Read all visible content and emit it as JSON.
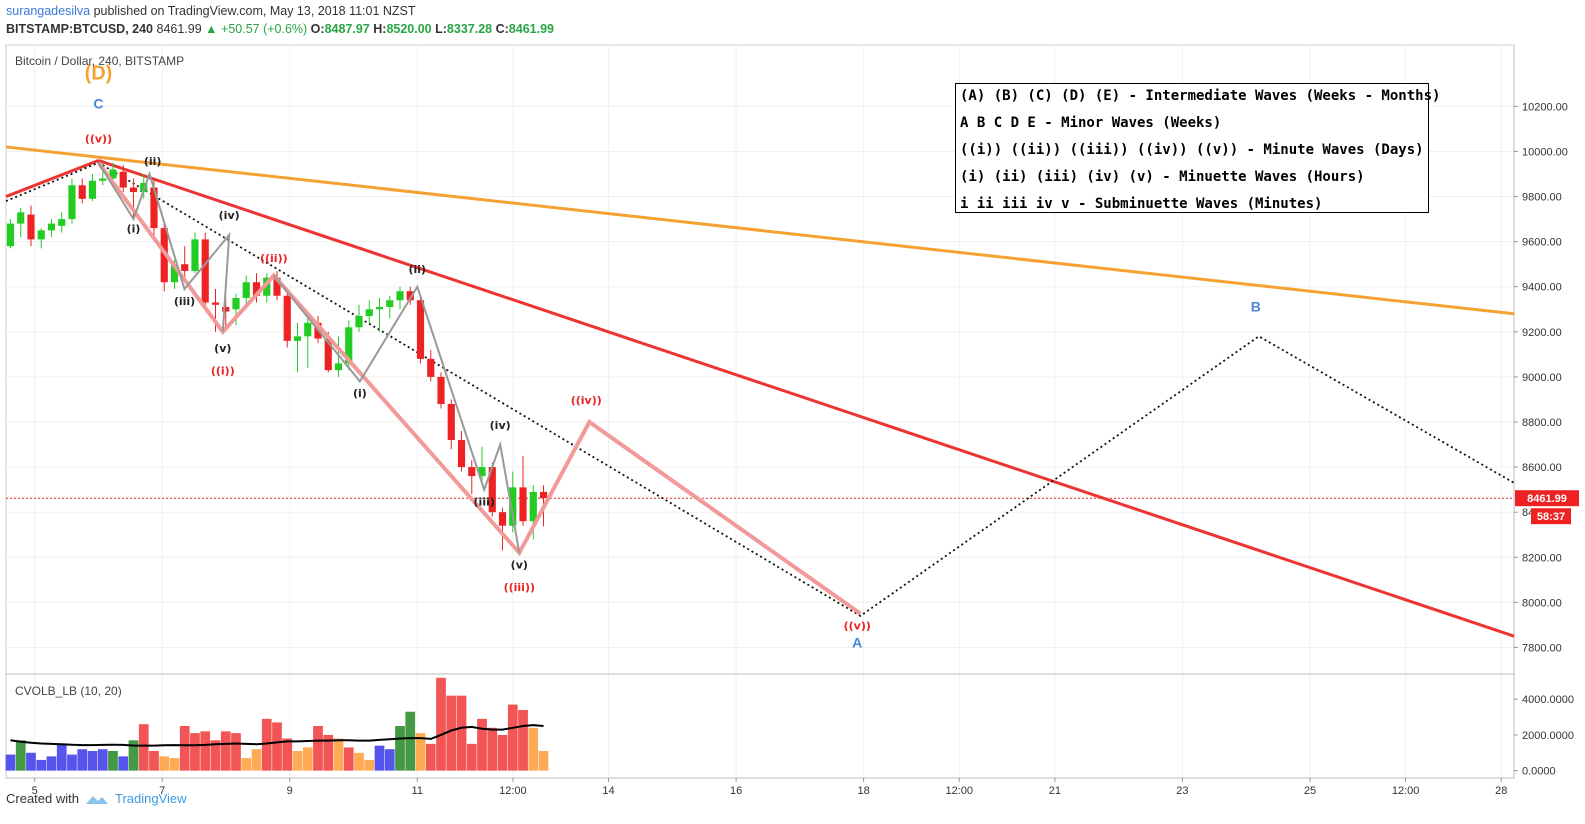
{
  "header": {
    "author": "surangadesilva",
    "published": "published on TradingView.com, May 13, 2018 11:01 NZST",
    "symbol": "BITSTAMP:BTCUSD, 240",
    "last": "8461.99",
    "change": "▲ +50.57 (+0.6%)",
    "o_label": "O:",
    "o": "8487.97",
    "h_label": "H:",
    "h": "8520.00",
    "l_label": "L:",
    "l": "8337.28",
    "c_label": "C:",
    "c": "8461.99"
  },
  "pane_title": "Bitcoin / Dollar, 240, BITSTAMP",
  "indicator_title": "CVOLB_LB (10, 20)",
  "legend": [
    "(A) (B) (C) (D) (E) - Intermediate Waves (Weeks - Months)",
    "A B C D E - Minor Waves (Weeks)",
    "((i)) ((ii)) ((iii)) ((iv)) ((v)) - Minute Waves (Days)",
    "(i) (ii) (iii) (iv) (v) - Minuette Waves (Hours)",
    "i ii iii iv v - Subminuette Waves (Minutes)"
  ],
  "price_tag": "8461.99",
  "countdown_tag": "58:37",
  "footer": {
    "created_with": "Created with",
    "brand": "TradingView"
  },
  "colors": {
    "up": "#22cc22",
    "down": "#ee2222",
    "orange_line": "#f5a233",
    "red_line": "#ee3333",
    "wave_pink": "#f29999",
    "wave_gray": "#999999",
    "blue_label": "#4a86d8",
    "red_label": "#ee2222",
    "vol_blue": "#5555ee",
    "vol_green": "#449944",
    "vol_orange": "#ffaa55",
    "vol_red": "#f25555"
  },
  "chart_data": {
    "type": "candlestick",
    "title": "Bitcoin / Dollar, 240, BITSTAMP",
    "y_range": [
      7700,
      10450
    ],
    "y_ticks": [
      7800,
      8000,
      8200,
      8400,
      8600,
      8800,
      9000,
      9200,
      9400,
      9600,
      9800,
      10000,
      10200
    ],
    "x_ticks": [
      {
        "t": 5,
        "label": "5"
      },
      {
        "t": 7,
        "label": "7"
      },
      {
        "t": 9,
        "label": "9"
      },
      {
        "t": 11,
        "label": "11"
      },
      {
        "t": 12.5,
        "label": "12:00"
      },
      {
        "t": 14,
        "label": "14"
      },
      {
        "t": 16,
        "label": "16"
      },
      {
        "t": 18,
        "label": "18"
      },
      {
        "t": 19.5,
        "label": "12:00"
      },
      {
        "t": 21,
        "label": "21"
      },
      {
        "t": 23,
        "label": "23"
      },
      {
        "t": 25,
        "label": "25"
      },
      {
        "t": 26.5,
        "label": "12:00"
      },
      {
        "t": 28,
        "label": "28"
      }
    ],
    "x_range": [
      4.55,
      28.2
    ],
    "last_price": 8461.99,
    "candles": [
      {
        "o": 9580,
        "h": 9700,
        "l": 9570,
        "c": 9680
      },
      {
        "o": 9680,
        "h": 9750,
        "l": 9620,
        "c": 9730
      },
      {
        "o": 9720,
        "h": 9760,
        "l": 9580,
        "c": 9610
      },
      {
        "o": 9610,
        "h": 9660,
        "l": 9570,
        "c": 9650
      },
      {
        "o": 9650,
        "h": 9700,
        "l": 9620,
        "c": 9680
      },
      {
        "o": 9670,
        "h": 9730,
        "l": 9640,
        "c": 9700
      },
      {
        "o": 9700,
        "h": 9880,
        "l": 9680,
        "c": 9850
      },
      {
        "o": 9850,
        "h": 9880,
        "l": 9770,
        "c": 9790
      },
      {
        "o": 9790,
        "h": 9900,
        "l": 9780,
        "c": 9870
      },
      {
        "o": 9870,
        "h": 9950,
        "l": 9850,
        "c": 9880
      },
      {
        "o": 9880,
        "h": 9950,
        "l": 9850,
        "c": 9920
      },
      {
        "o": 9910,
        "h": 9940,
        "l": 9820,
        "c": 9840
      },
      {
        "o": 9840,
        "h": 9880,
        "l": 9700,
        "c": 9820
      },
      {
        "o": 9820,
        "h": 9900,
        "l": 9790,
        "c": 9860
      },
      {
        "o": 9840,
        "h": 9870,
        "l": 9600,
        "c": 9660
      },
      {
        "o": 9660,
        "h": 9680,
        "l": 9380,
        "c": 9420
      },
      {
        "o": 9420,
        "h": 9520,
        "l": 9390,
        "c": 9500
      },
      {
        "o": 9500,
        "h": 9580,
        "l": 9440,
        "c": 9470
      },
      {
        "o": 9470,
        "h": 9640,
        "l": 9460,
        "c": 9610
      },
      {
        "o": 9610,
        "h": 9640,
        "l": 9300,
        "c": 9330
      },
      {
        "o": 9330,
        "h": 9390,
        "l": 9200,
        "c": 9320
      },
      {
        "o": 9310,
        "h": 9350,
        "l": 9220,
        "c": 9290
      },
      {
        "o": 9300,
        "h": 9370,
        "l": 9230,
        "c": 9350
      },
      {
        "o": 9350,
        "h": 9450,
        "l": 9300,
        "c": 9420
      },
      {
        "o": 9420,
        "h": 9460,
        "l": 9330,
        "c": 9360
      },
      {
        "o": 9360,
        "h": 9460,
        "l": 9330,
        "c": 9440
      },
      {
        "o": 9440,
        "h": 9470,
        "l": 9340,
        "c": 9360
      },
      {
        "o": 9360,
        "h": 9380,
        "l": 9130,
        "c": 9160
      },
      {
        "o": 9160,
        "h": 9240,
        "l": 9020,
        "c": 9180
      },
      {
        "o": 9180,
        "h": 9260,
        "l": 9040,
        "c": 9240
      },
      {
        "o": 9240,
        "h": 9270,
        "l": 9150,
        "c": 9170
      },
      {
        "o": 9170,
        "h": 9200,
        "l": 9020,
        "c": 9030
      },
      {
        "o": 9030,
        "h": 9180,
        "l": 9000,
        "c": 9060
      },
      {
        "o": 9060,
        "h": 9250,
        "l": 9030,
        "c": 9220
      },
      {
        "o": 9220,
        "h": 9320,
        "l": 9200,
        "c": 9270
      },
      {
        "o": 9270,
        "h": 9340,
        "l": 9240,
        "c": 9300
      },
      {
        "o": 9300,
        "h": 9350,
        "l": 9200,
        "c": 9310
      },
      {
        "o": 9310,
        "h": 9360,
        "l": 9260,
        "c": 9340
      },
      {
        "o": 9340,
        "h": 9400,
        "l": 9300,
        "c": 9380
      },
      {
        "o": 9380,
        "h": 9400,
        "l": 9320,
        "c": 9340
      },
      {
        "o": 9340,
        "h": 9360,
        "l": 9060,
        "c": 9080
      },
      {
        "o": 9080,
        "h": 9120,
        "l": 8980,
        "c": 9000
      },
      {
        "o": 9000,
        "h": 9020,
        "l": 8860,
        "c": 8880
      },
      {
        "o": 8880,
        "h": 8900,
        "l": 8680,
        "c": 8720
      },
      {
        "o": 8720,
        "h": 8760,
        "l": 8580,
        "c": 8600
      },
      {
        "o": 8600,
        "h": 8630,
        "l": 8480,
        "c": 8560
      },
      {
        "o": 8560,
        "h": 8690,
        "l": 8540,
        "c": 8600
      },
      {
        "o": 8600,
        "h": 8620,
        "l": 8380,
        "c": 8400
      },
      {
        "o": 8400,
        "h": 8420,
        "l": 8230,
        "c": 8340
      },
      {
        "o": 8340,
        "h": 8580,
        "l": 8310,
        "c": 8510
      },
      {
        "o": 8510,
        "h": 8650,
        "l": 8340,
        "c": 8360
      },
      {
        "o": 8360,
        "h": 8520,
        "l": 8280,
        "c": 8490
      },
      {
        "o": 8490,
        "h": 8520,
        "l": 8337,
        "c": 8462
      }
    ],
    "volume_axis": {
      "range": [
        -300,
        5300
      ],
      "ticks": [
        0,
        2000,
        4000
      ],
      "tick_labels": [
        "0.0000",
        "2000.0000",
        "4000.0000"
      ]
    },
    "volumes": [
      {
        "v": 900,
        "k": "blue"
      },
      {
        "v": 1700,
        "k": "green"
      },
      {
        "v": 1000,
        "k": "blue"
      },
      {
        "v": 600,
        "k": "blue"
      },
      {
        "v": 800,
        "k": "blue"
      },
      {
        "v": 1500,
        "k": "blue"
      },
      {
        "v": 900,
        "k": "blue"
      },
      {
        "v": 1200,
        "k": "blue"
      },
      {
        "v": 1100,
        "k": "blue"
      },
      {
        "v": 1200,
        "k": "blue"
      },
      {
        "v": 1100,
        "k": "green"
      },
      {
        "v": 800,
        "k": "blue"
      },
      {
        "v": 1700,
        "k": "green"
      },
      {
        "v": 2600,
        "k": "red"
      },
      {
        "v": 1100,
        "k": "red"
      },
      {
        "v": 800,
        "k": "orange"
      },
      {
        "v": 700,
        "k": "orange"
      },
      {
        "v": 2500,
        "k": "red"
      },
      {
        "v": 2100,
        "k": "red"
      },
      {
        "v": 2200,
        "k": "red"
      },
      {
        "v": 1700,
        "k": "red"
      },
      {
        "v": 2200,
        "k": "red"
      },
      {
        "v": 2100,
        "k": "red"
      },
      {
        "v": 700,
        "k": "orange"
      },
      {
        "v": 1200,
        "k": "orange"
      },
      {
        "v": 2900,
        "k": "red"
      },
      {
        "v": 2700,
        "k": "red"
      },
      {
        "v": 1800,
        "k": "red"
      },
      {
        "v": 1100,
        "k": "orange"
      },
      {
        "v": 1300,
        "k": "orange"
      },
      {
        "v": 2500,
        "k": "red"
      },
      {
        "v": 2000,
        "k": "red"
      },
      {
        "v": 1800,
        "k": "orange"
      },
      {
        "v": 1300,
        "k": "red"
      },
      {
        "v": 1000,
        "k": "orange"
      },
      {
        "v": 600,
        "k": "orange"
      },
      {
        "v": 1400,
        "k": "blue"
      },
      {
        "v": 1200,
        "k": "blue"
      },
      {
        "v": 2500,
        "k": "green"
      },
      {
        "v": 3300,
        "k": "green"
      },
      {
        "v": 2100,
        "k": "orange"
      },
      {
        "v": 1500,
        "k": "red"
      },
      {
        "v": 5200,
        "k": "red"
      },
      {
        "v": 4200,
        "k": "red"
      },
      {
        "v": 4200,
        "k": "red"
      },
      {
        "v": 1500,
        "k": "red"
      },
      {
        "v": 2900,
        "k": "red"
      },
      {
        "v": 2400,
        "k": "red"
      },
      {
        "v": 2000,
        "k": "red"
      },
      {
        "v": 3700,
        "k": "red"
      },
      {
        "v": 3400,
        "k": "red"
      },
      {
        "v": 2400,
        "k": "orange"
      },
      {
        "v": 1100,
        "k": "orange"
      }
    ],
    "volume_ma": [
      1700,
      1620,
      1560,
      1520,
      1500,
      1480,
      1450,
      1430,
      1430,
      1440,
      1450,
      1440,
      1400,
      1400,
      1400,
      1420,
      1430,
      1420,
      1420,
      1440,
      1480,
      1500,
      1520,
      1500,
      1480,
      1520,
      1580,
      1640,
      1640,
      1660,
      1680,
      1680,
      1700,
      1700,
      1680,
      1680,
      1720,
      1760,
      1800,
      1820,
      1820,
      1780,
      2000,
      2250,
      2400,
      2450,
      2350,
      2300,
      2300,
      2400,
      2500,
      2550,
      2500
    ],
    "trend_lines": [
      {
        "kind": "orange",
        "p1": {
          "t": 4.55,
          "y": 10020
        },
        "p2": {
          "t": 28.2,
          "y": 9280
        }
      },
      {
        "kind": "red",
        "p1": {
          "t": 4.55,
          "y": 9800
        },
        "p2": {
          "t": 6.0,
          "y": 9960
        }
      },
      {
        "kind": "red",
        "p1": {
          "t": 6.0,
          "y": 9960
        },
        "p2": {
          "t": 28.2,
          "y": 7850
        }
      }
    ],
    "dotted_paths": [
      [
        {
          "t": 4.55,
          "y": 9780
        },
        {
          "t": 6.0,
          "y": 9950
        },
        {
          "t": 17.95,
          "y": 7940
        },
        {
          "t": 24.2,
          "y": 9180
        },
        {
          "t": 28.2,
          "y": 8530
        }
      ]
    ],
    "wave_minute": [
      {
        "t": 6.0,
        "y": 9950
      },
      {
        "t": 7.95,
        "y": 9200
      },
      {
        "t": 8.75,
        "y": 9450
      },
      {
        "t": 12.6,
        "y": 8220
      },
      {
        "t": 13.7,
        "y": 8800
      },
      {
        "t": 17.95,
        "y": 7950
      }
    ],
    "wave_minuette_1": [
      {
        "t": 6.0,
        "y": 9950
      },
      {
        "t": 6.55,
        "y": 9700
      },
      {
        "t": 6.8,
        "y": 9900
      },
      {
        "t": 7.35,
        "y": 9390
      },
      {
        "t": 8.05,
        "y": 9630
      },
      {
        "t": 7.95,
        "y": 9200
      }
    ],
    "wave_minuette_3": [
      {
        "t": 8.75,
        "y": 9450
      },
      {
        "t": 10.1,
        "y": 8980
      },
      {
        "t": 11.0,
        "y": 9400
      },
      {
        "t": 12.05,
        "y": 8500
      },
      {
        "t": 12.3,
        "y": 8700
      },
      {
        "t": 12.6,
        "y": 8220
      }
    ],
    "labels": [
      {
        "text": "(D)",
        "t": 6.0,
        "y": 10320,
        "color": "orange",
        "size": 20
      },
      {
        "text": "C",
        "t": 6.0,
        "y": 10190,
        "color": "blue",
        "size": 14
      },
      {
        "text": "((v))",
        "t": 6.0,
        "y": 10040,
        "color": "red",
        "size": 11
      },
      {
        "text": "(ii)",
        "t": 6.85,
        "y": 9940,
        "color": "dark",
        "size": 11
      },
      {
        "text": "(i)",
        "t": 6.55,
        "y": 9640,
        "color": "dark",
        "size": 11
      },
      {
        "text": "(iii)",
        "t": 7.35,
        "y": 9320,
        "color": "dark",
        "size": 11
      },
      {
        "text": "(iv)",
        "t": 8.05,
        "y": 9700,
        "color": "dark",
        "size": 11
      },
      {
        "text": "((ii))",
        "t": 8.75,
        "y": 9510,
        "color": "red",
        "size": 11
      },
      {
        "text": "(v)",
        "t": 7.95,
        "y": 9110,
        "color": "dark",
        "size": 11
      },
      {
        "text": "((i))",
        "t": 7.95,
        "y": 9010,
        "color": "red",
        "size": 11
      },
      {
        "text": "(ii)",
        "t": 11.0,
        "y": 9460,
        "color": "dark",
        "size": 11
      },
      {
        "text": "(i)",
        "t": 10.1,
        "y": 8910,
        "color": "dark",
        "size": 11
      },
      {
        "text": "(iv)",
        "t": 12.3,
        "y": 8770,
        "color": "dark",
        "size": 11
      },
      {
        "text": "(iii)",
        "t": 12.05,
        "y": 8430,
        "color": "dark",
        "size": 11
      },
      {
        "text": "(v)",
        "t": 12.6,
        "y": 8150,
        "color": "dark",
        "size": 11
      },
      {
        "text": "((iii))",
        "t": 12.6,
        "y": 8050,
        "color": "red",
        "size": 11
      },
      {
        "text": "((iv))",
        "t": 13.65,
        "y": 8880,
        "color": "red",
        "size": 11
      },
      {
        "text": "((v))",
        "t": 17.9,
        "y": 7880,
        "color": "red",
        "size": 11
      },
      {
        "text": "A",
        "t": 17.9,
        "y": 7800,
        "color": "blue",
        "size": 14
      },
      {
        "text": "B",
        "t": 24.15,
        "y": 9290,
        "color": "blue",
        "size": 14
      }
    ]
  }
}
